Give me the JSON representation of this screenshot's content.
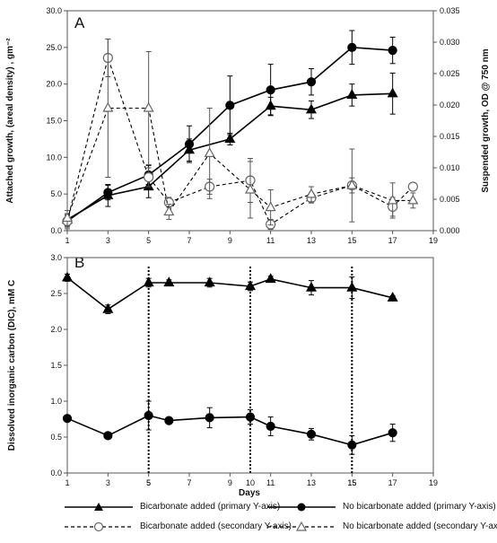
{
  "chart_data": [
    {
      "panel": "A",
      "type": "line",
      "xlabel": "",
      "ylabel": "Attached growth, (areal density) , gm⁻²",
      "y2label": "Suspended growth, OD @ 750 nm",
      "xlim": [
        1,
        19
      ],
      "ylim": [
        0,
        30
      ],
      "y2lim": [
        0,
        0.035
      ],
      "x_ticks": [
        1,
        3,
        5,
        7,
        9,
        11,
        13,
        15,
        17,
        19
      ],
      "y_ticks": [
        "0.0",
        "5.0",
        "10.0",
        "15.0",
        "20.0",
        "25.0",
        "30.0"
      ],
      "y2_ticks": [
        "0.000",
        "0.005",
        "0.010",
        "0.015",
        "0.020",
        "0.025",
        "0.030",
        "0.035"
      ],
      "series": [
        {
          "name": "Bicarbonate added (primary Y-axis)",
          "axis": "primary",
          "marker": "triangle-filled",
          "dash": "solid",
          "x": [
            1,
            3,
            5,
            7,
            9,
            11,
            13,
            15,
            17
          ],
          "y": [
            1.5,
            4.8,
            6.0,
            11.0,
            12.5,
            17.0,
            16.5,
            18.5,
            18.7
          ],
          "err": [
            0.8,
            1.5,
            1.5,
            1.5,
            0.8,
            1.2,
            1.2,
            1.5,
            2.8
          ]
        },
        {
          "name": "No bicarbonate added (primary Y-axis)",
          "axis": "primary",
          "marker": "circle-filled",
          "dash": "solid",
          "x": [
            1,
            3,
            5,
            7,
            9,
            11,
            13,
            15,
            17
          ],
          "y": [
            1.3,
            5.2,
            7.6,
            11.8,
            17.1,
            19.2,
            20.3,
            25.0,
            24.6
          ],
          "err": [
            0.8,
            1.0,
            1.3,
            2.5,
            4.0,
            3.5,
            1.8,
            2.3,
            1.8
          ]
        },
        {
          "name": "Bicarbonate added (secondary Y-axis)",
          "axis": "secondary",
          "marker": "circle-open",
          "dash": "dashed",
          "x": [
            1,
            3,
            5,
            6,
            8,
            10,
            11,
            13,
            15,
            17,
            18
          ],
          "y": [
            0.0015,
            0.0275,
            0.0085,
            0.0045,
            0.007,
            0.008,
            0.001,
            0.0052,
            0.0072,
            0.0038,
            0.007
          ],
          "err": [
            0.0012,
            0.003,
            0.0015,
            0.0008,
            0.0012,
            0.0035,
            0.0008,
            0.0008,
            0.0058,
            0.0015,
            0.0004
          ]
        },
        {
          "name": "No bicarbonate added (secondary Y-axis)",
          "axis": "secondary",
          "marker": "triangle-open",
          "dash": "dashed",
          "x": [
            1,
            3,
            5,
            6,
            8,
            10,
            11,
            13,
            15,
            17,
            18
          ],
          "y": [
            0.002,
            0.0195,
            0.0195,
            0.003,
            0.0123,
            0.0065,
            0.0037,
            0.0058,
            0.0072,
            0.0048,
            0.0048
          ],
          "err": [
            0.0012,
            0.011,
            0.009,
            0.0012,
            0.0072,
            0.0045,
            0.0028,
            0.0012,
            0.0012,
            0.0028,
            0.0012
          ]
        }
      ]
    },
    {
      "panel": "B",
      "type": "line",
      "xlabel": "Days",
      "ylabel": "Dissolved inorganic carbon (DIC), mM C",
      "xlim": [
        1,
        19
      ],
      "ylim": [
        0,
        3
      ],
      "x_ticks": [
        1,
        3,
        5,
        7,
        9,
        11,
        13,
        15,
        17,
        19
      ],
      "extra_x_ticks": [
        5,
        10,
        15
      ],
      "y_ticks": [
        "0.0",
        "0.5",
        "1.0",
        "1.5",
        "2.0",
        "2.5",
        "3.0"
      ],
      "vlines": [
        5,
        10,
        15
      ],
      "series": [
        {
          "name": "Bicarbonate added (primary Y-axis)",
          "marker": "triangle-filled",
          "dash": "solid",
          "x": [
            1,
            3,
            5,
            6,
            8,
            10,
            11,
            13,
            15,
            17
          ],
          "y": [
            2.72,
            2.28,
            2.65,
            2.65,
            2.65,
            2.6,
            2.7,
            2.58,
            2.58,
            2.44
          ],
          "err": [
            0.05,
            0.06,
            0.06,
            0.04,
            0.06,
            0.06,
            0.04,
            0.1,
            0.15,
            0.03
          ]
        },
        {
          "name": "No bicarbonate added (primary Y-axis)",
          "marker": "circle-filled",
          "dash": "solid",
          "x": [
            1,
            3,
            5,
            6,
            8,
            10,
            11,
            13,
            15,
            17
          ],
          "y": [
            0.76,
            0.52,
            0.8,
            0.73,
            0.77,
            0.78,
            0.65,
            0.54,
            0.39,
            0.56
          ],
          "err": [
            0.04,
            0.03,
            0.2,
            0.03,
            0.14,
            0.1,
            0.13,
            0.08,
            0.13,
            0.12
          ]
        }
      ]
    }
  ],
  "legend": [
    {
      "label": "Bicarbonate added (primary Y-axis)",
      "marker": "triangle-filled",
      "dash": "solid"
    },
    {
      "label": "No bicarbonate added (primary Y-axis)",
      "marker": "circle-filled",
      "dash": "solid"
    },
    {
      "label": "Bicarbonate added (secondary Y-axis)",
      "marker": "circle-open",
      "dash": "dashed"
    },
    {
      "label": "No bicarbonate added (secondary Y-axis)",
      "marker": "triangle-open",
      "dash": "dashed"
    }
  ]
}
